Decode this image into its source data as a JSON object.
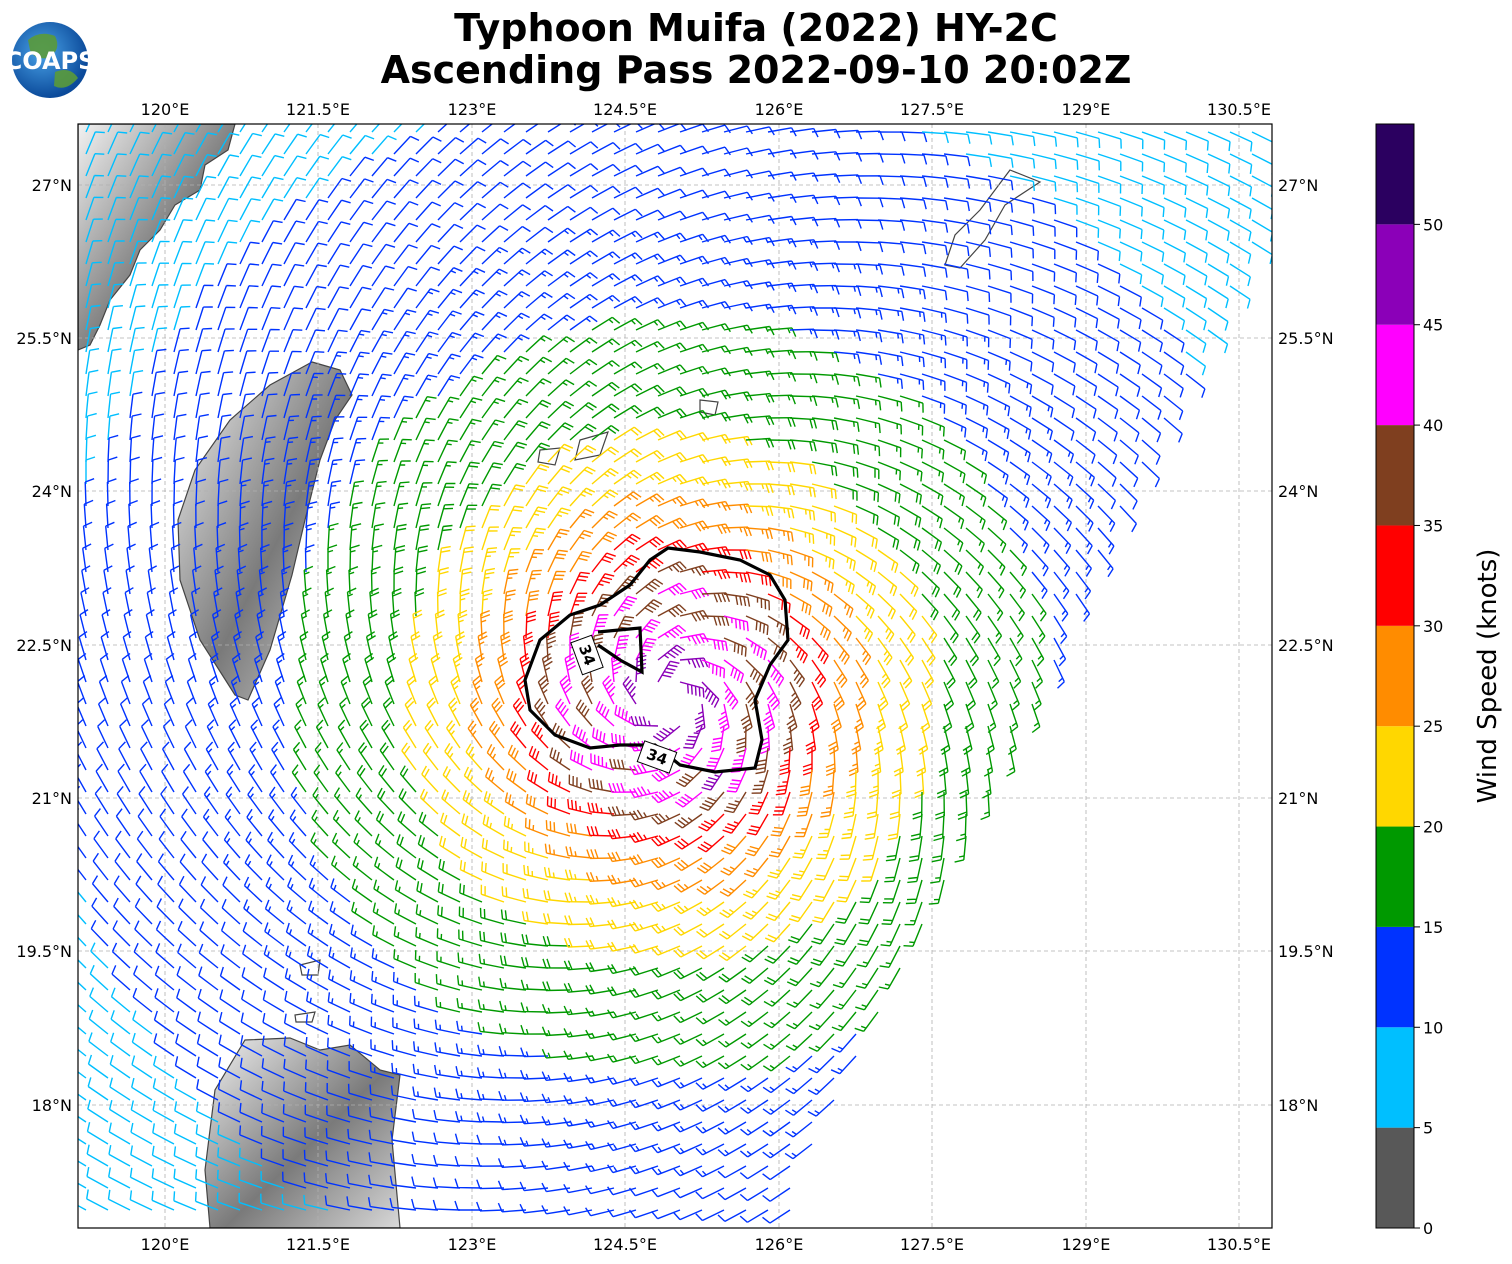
{
  "title": {
    "line1": "Typhoon Muifa (2022) HY-2C",
    "line2": "Ascending Pass 2022-09-10 20:02Z"
  },
  "logo": {
    "text": "COAPS"
  },
  "map": {
    "lon_range": [
      119.1,
      130.8
    ],
    "lat_range": [
      16.8,
      27.6
    ],
    "lon_ticks": [
      "120°E",
      "121.5°E",
      "123°E",
      "124.5°E",
      "126°E",
      "127.5°E",
      "129°E",
      "130.5°E"
    ],
    "lat_ticks": [
      "18°N",
      "19.5°N",
      "21°N",
      "22.5°N",
      "24°N",
      "25.5°N",
      "27°N"
    ],
    "grid": true,
    "storm_center": {
      "lon": 124.9,
      "lat": 22.0
    },
    "contour": {
      "level_label": "34",
      "color": "#000000"
    }
  },
  "colorbar": {
    "label": "Wind Speed (knots)",
    "ticks": [
      "0",
      "5",
      "10",
      "15",
      "20",
      "25",
      "30",
      "35",
      "40",
      "45",
      "50"
    ],
    "bins": [
      {
        "min": 0,
        "max": 5,
        "color": "#585858"
      },
      {
        "min": 5,
        "max": 10,
        "color": "#00bfff"
      },
      {
        "min": 10,
        "max": 15,
        "color": "#0033ff"
      },
      {
        "min": 15,
        "max": 20,
        "color": "#009900"
      },
      {
        "min": 20,
        "max": 25,
        "color": "#ffd700"
      },
      {
        "min": 25,
        "max": 30,
        "color": "#ff8c00"
      },
      {
        "min": 30,
        "max": 35,
        "color": "#ff0000"
      },
      {
        "min": 35,
        "max": 40,
        "color": "#7f3f1f"
      },
      {
        "min": 40,
        "max": 45,
        "color": "#ff00ff"
      },
      {
        "min": 45,
        "max": 50,
        "color": "#8b00b8"
      },
      {
        "min": 50,
        "max": 55,
        "color": "#2b0060"
      }
    ]
  }
}
